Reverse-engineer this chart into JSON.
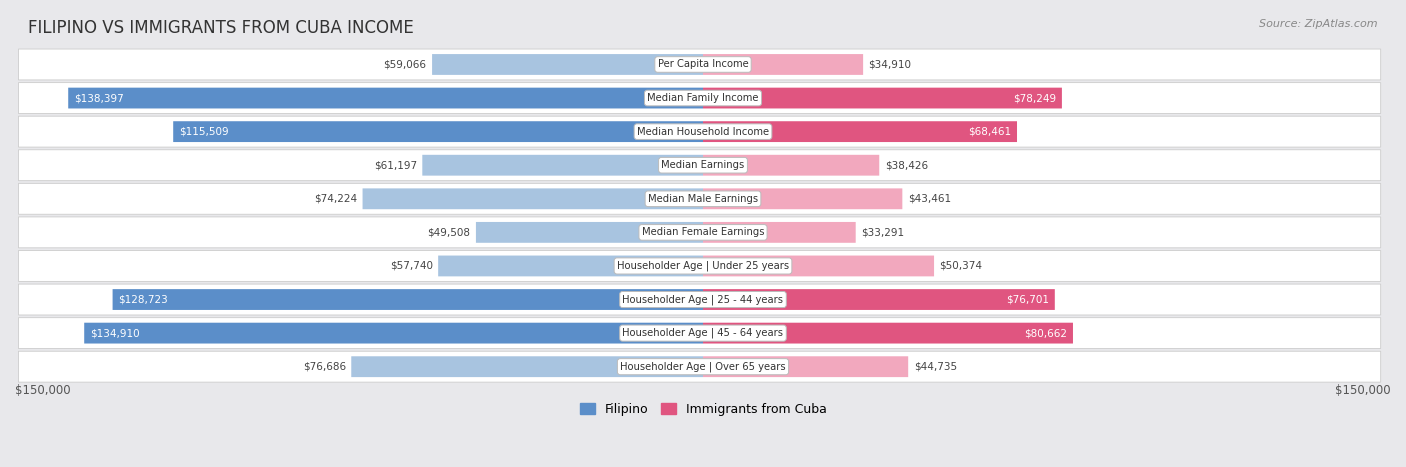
{
  "title": "FILIPINO VS IMMIGRANTS FROM CUBA INCOME",
  "source": "Source: ZipAtlas.com",
  "max_value": 150000,
  "categories": [
    "Per Capita Income",
    "Median Family Income",
    "Median Household Income",
    "Median Earnings",
    "Median Male Earnings",
    "Median Female Earnings",
    "Householder Age | Under 25 years",
    "Householder Age | 25 - 44 years",
    "Householder Age | 45 - 64 years",
    "Householder Age | Over 65 years"
  ],
  "filipino_values": [
    59066,
    138397,
    115509,
    61197,
    74224,
    49508,
    57740,
    128723,
    134910,
    76686
  ],
  "cuba_values": [
    34910,
    78249,
    68461,
    38426,
    43461,
    33291,
    50374,
    76701,
    80662,
    44735
  ],
  "filipino_labels": [
    "$59,066",
    "$138,397",
    "$115,509",
    "$61,197",
    "$74,224",
    "$49,508",
    "$57,740",
    "$128,723",
    "$134,910",
    "$76,686"
  ],
  "cuba_labels": [
    "$34,910",
    "$78,249",
    "$68,461",
    "$38,426",
    "$43,461",
    "$33,291",
    "$50,374",
    "$76,701",
    "$80,662",
    "$44,735"
  ],
  "filipino_color_dark": "#5b8ec9",
  "filipino_color_light": "#a8c4e0",
  "cuba_color_dark": "#e05580",
  "cuba_color_light": "#f2a8be",
  "row_bg_light": "#f5f5f5",
  "row_bg_dark": "#e8e8eb",
  "background_color": "#e8e8eb",
  "bottom_label_left": "$150,000",
  "bottom_label_right": "$150,000",
  "legend_filipino": "Filipino",
  "legend_cuba": "Immigrants from Cuba",
  "fil_large_threshold": 100000,
  "cuba_large_threshold": 65000
}
